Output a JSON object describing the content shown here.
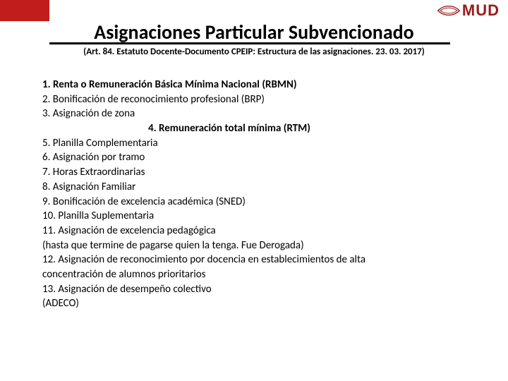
{
  "brand": {
    "name": "MUD",
    "brand_color": "#9a1b1b",
    "accent_color": "#c11d1d"
  },
  "title": "Asignaciones Particular Subvencionado",
  "subtitle": "(Art. 84. Estatuto Docente-Documento CPEIP: Estructura de las asignaciones. 23. 03. 2017)",
  "lines": [
    {
      "text": "1. Renta o Remuneración Básica Mínima Nacional (RBMN)",
      "bold": true
    },
    {
      "text": "2. Bonificación de reconocimiento profesional (BRP)"
    },
    {
      "text": "3. Asignación de zona"
    },
    {
      "text": "4. Remuneración total mínima (RTM)",
      "bold": true,
      "indent": true
    },
    {
      "text": "5. Planilla Complementaria"
    },
    {
      "text": "6. Asignación por tramo"
    },
    {
      "text": "7. Horas Extraordinarias"
    },
    {
      "text": "8.  Asignación Familiar"
    },
    {
      "text": "9. Bonificación de excelencia académica (SNED)"
    },
    {
      "text": "10. Planilla Suplementaria"
    },
    {
      "text": "11. Asignación de excelencia pedagógica"
    },
    {
      "text": "(hasta que termine de pagarse quien la tenga. Fue Derogada)"
    },
    {
      "text": "12. Asignación de reconocimiento por docencia en establecimientos de alta"
    },
    {
      "text": "concentración de alumnos prioritarios"
    },
    {
      "text": "13. Asignación de desempeño colectivo"
    },
    {
      "text": "(ADECO)"
    }
  ]
}
